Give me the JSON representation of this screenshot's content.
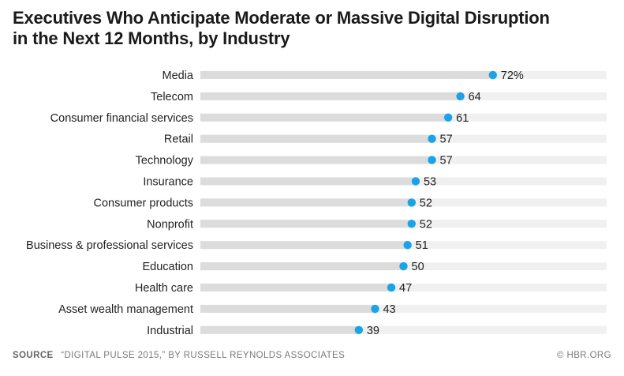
{
  "header": {
    "title_line1": "Executives Who Anticipate Moderate or Massive Digital Disruption",
    "title_line2": "in the Next 12 Months, by Industry"
  },
  "footer": {
    "source_label": "SOURCE",
    "source_text": "“DIGITAL PULSE 2015,” BY RUSSELL REYNOLDS ASSOCIATES",
    "credit": "© HBR.ORG"
  },
  "colors": {
    "dot": "#1aa3e8",
    "track_left": "#dcdcdc",
    "track_right": "#f0f0f0",
    "text": "#222222"
  },
  "chart_data": {
    "type": "dot",
    "title": "Executives Who Anticipate Moderate or Massive Digital Disruption in the Next 12 Months, by Industry",
    "categories": [
      "Media",
      "Telecom",
      "Consumer financial services",
      "Retail",
      "Technology",
      "Insurance",
      "Consumer products",
      "Nonprofit",
      "Business & professional services",
      "Education",
      "Health care",
      "Asset wealth management",
      "Industrial"
    ],
    "values": [
      72,
      64,
      61,
      57,
      57,
      53,
      52,
      52,
      51,
      50,
      47,
      43,
      39
    ],
    "data_labels": [
      "72%",
      "64",
      "61",
      "57",
      "57",
      "53",
      "52",
      "52",
      "51",
      "50",
      "47",
      "43",
      "39"
    ],
    "xlim": [
      0,
      100
    ],
    "grid": false,
    "legend": "none"
  }
}
